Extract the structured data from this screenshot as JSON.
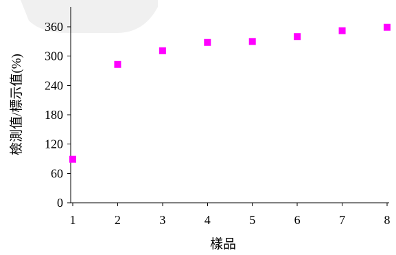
{
  "chart_data": {
    "type": "scatter",
    "title": "",
    "xlabel": "樣品",
    "ylabel": "檢測值/標示值(%)",
    "x_ticks": [
      "1",
      "2",
      "3",
      "4",
      "5",
      "6",
      "7",
      "8"
    ],
    "y_ticks": [
      "0",
      "60",
      "120",
      "180",
      "240",
      "300",
      "360"
    ],
    "xlim": [
      1,
      8
    ],
    "ylim": [
      0,
      360
    ],
    "grid": false,
    "legend": "none",
    "series": [
      {
        "color": "#ff00ff",
        "marker": "square",
        "points": [
          {
            "x": 1,
            "y": 89
          },
          {
            "x": 2,
            "y": 283
          },
          {
            "x": 3,
            "y": 311
          },
          {
            "x": 4,
            "y": 328
          },
          {
            "x": 5,
            "y": 330
          },
          {
            "x": 6,
            "y": 340
          },
          {
            "x": 7,
            "y": 352
          },
          {
            "x": 8,
            "y": 359
          }
        ]
      }
    ]
  }
}
